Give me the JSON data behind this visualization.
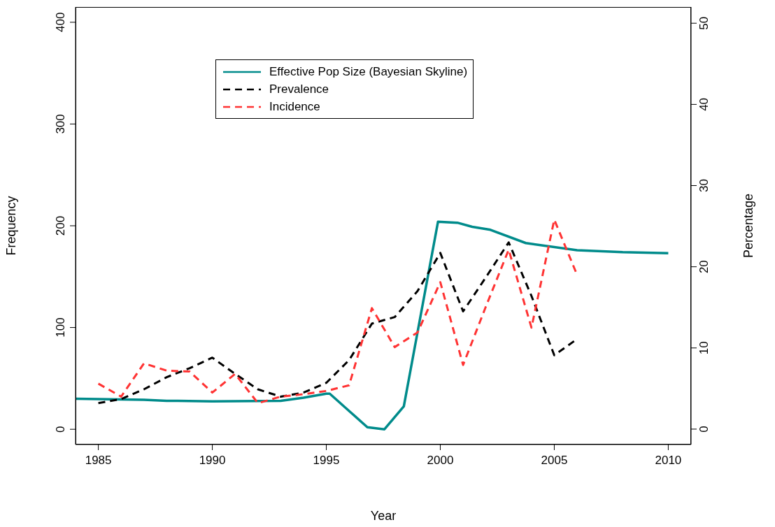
{
  "chart_data": {
    "type": "line",
    "xlabel": "Year",
    "ylabel": "Frequency",
    "y2label": "Percentage",
    "xlim": [
      1984,
      2011
    ],
    "xticks": [
      1985,
      1990,
      1995,
      2000,
      2005,
      2010
    ],
    "ylim": [
      -15,
      415
    ],
    "yticks": [
      0,
      100,
      200,
      300,
      400
    ],
    "y2lim": [
      -1.9,
      52
    ],
    "y2ticks": [
      0,
      10,
      20,
      30,
      40,
      50
    ],
    "legend": "top",
    "marker": "none",
    "series": [
      {
        "name": "Effective Pop Size (Bayesian Skyline)",
        "color": "#008b8b",
        "line_style": "solid",
        "x": [
          1984,
          1987,
          1988,
          1990,
          1993,
          1994,
          1995,
          1995.15,
          1996,
          1996.8,
          1997.55,
          1998.4,
          1999.9,
          2000.75,
          2001.4,
          2002.2,
          2003.75,
          2006,
          2008,
          2010
        ],
        "values": [
          30,
          29,
          28,
          27.5,
          28,
          31,
          35,
          35,
          18,
          2,
          0,
          22.5,
          204,
          203,
          199,
          196,
          183,
          176,
          174,
          173
        ]
      },
      {
        "name": "Prevalence",
        "color": "#000000",
        "line_style": "dashed",
        "axis": "y2",
        "x": [
          1985,
          1986,
          1987,
          1988,
          1989,
          1990,
          1991,
          1992,
          1993,
          1994,
          1995,
          1996,
          1997,
          1998,
          1999,
          2000,
          2001,
          2002,
          2003,
          2004,
          2005,
          2006
        ],
        "values": [
          3.2,
          3.7,
          4.9,
          6.4,
          7.5,
          8.8,
          6.8,
          4.9,
          4.0,
          4.5,
          5.7,
          8.5,
          13.0,
          13.8,
          17.0,
          21.7,
          14.5,
          18.7,
          23.0,
          16.4,
          9.1,
          11.1
        ]
      },
      {
        "name": "Incidence",
        "color": "#ff3333",
        "line_style": "dashed",
        "axis": "y2",
        "x": [
          1985,
          1986,
          1987,
          1988,
          1989,
          1990,
          1991,
          1992,
          1993,
          1994,
          1995,
          1996,
          1997,
          1998,
          1999,
          2000,
          2001,
          2002,
          2003,
          2004,
          2005,
          2006
        ],
        "values": [
          5.6,
          4.0,
          8.1,
          7.2,
          7.1,
          4.5,
          6.8,
          3.2,
          4.0,
          4.3,
          4.7,
          5.4,
          14.9,
          10.1,
          11.9,
          18.1,
          7.9,
          15.1,
          22.1,
          12.5,
          25.8,
          19.0
        ]
      }
    ]
  }
}
